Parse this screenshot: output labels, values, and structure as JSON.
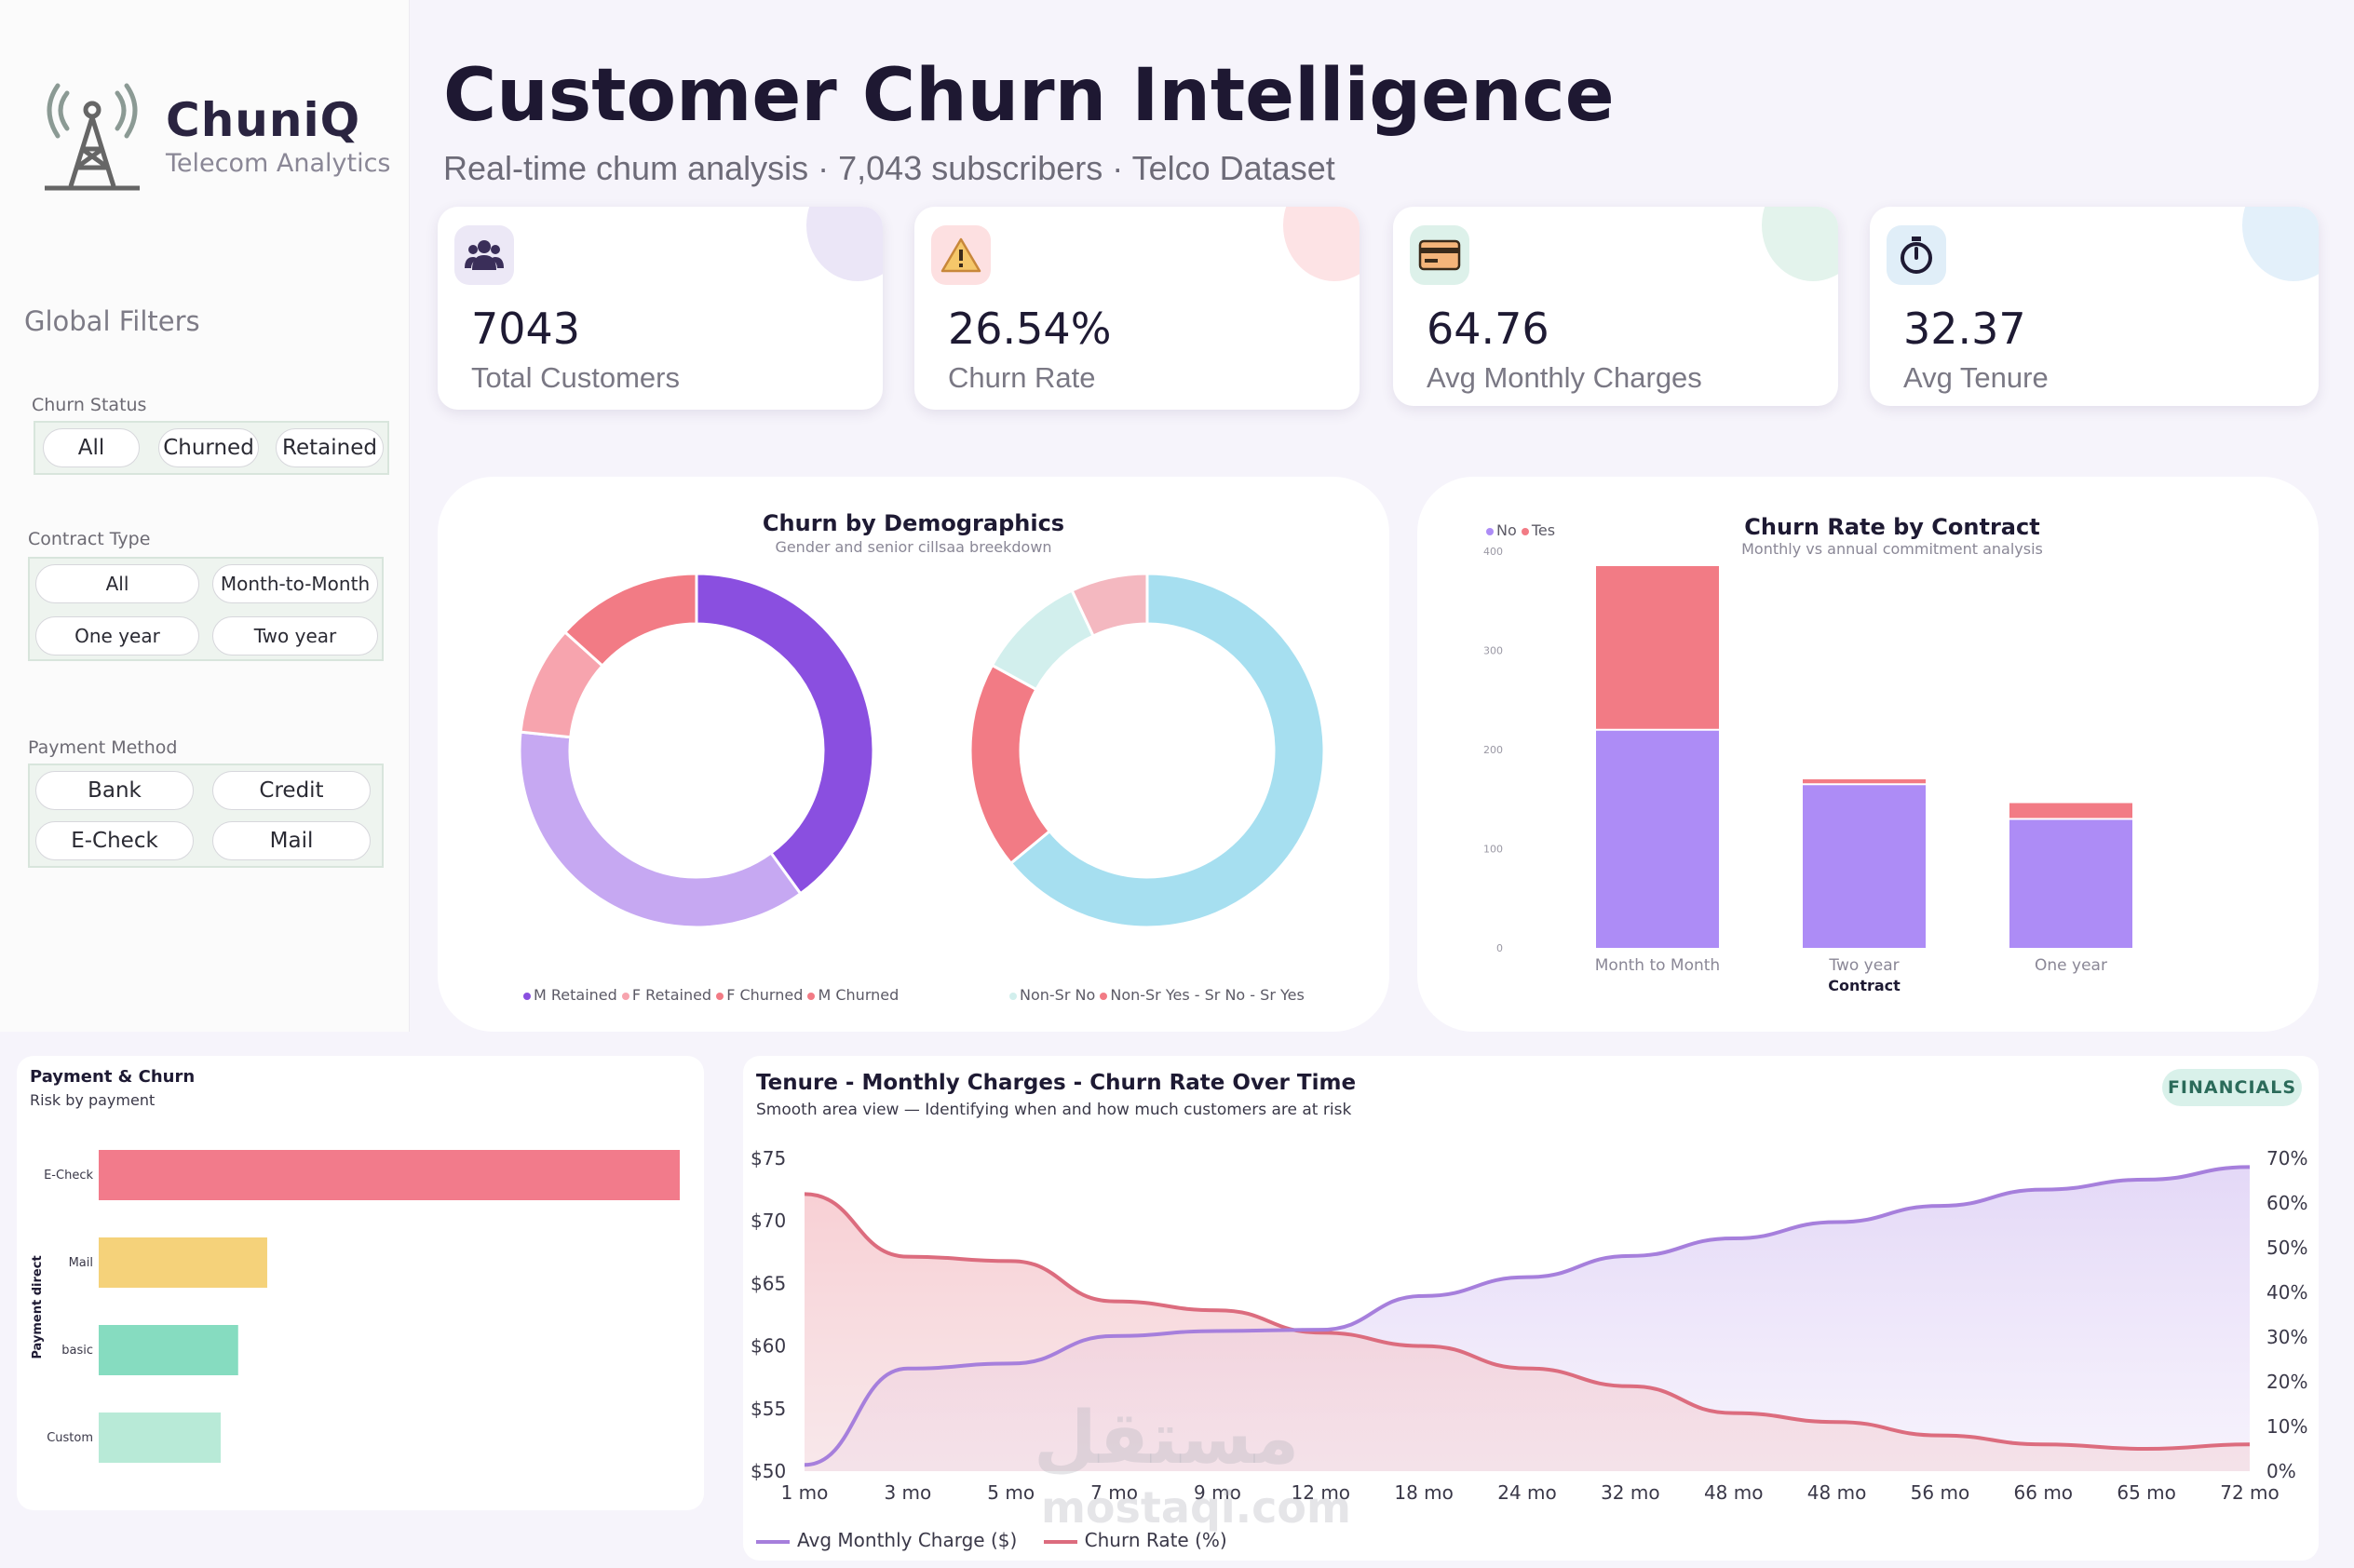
{
  "brand": {
    "name": "ChuniQ",
    "tagline": "Telecom Analytics"
  },
  "header": {
    "title": "Customer Churn Intelligence",
    "subtitle": "Real-time chum analysis · 7,043 subscribers · Telco Dataset"
  },
  "filters": {
    "title": "Global Filters",
    "churn_status": {
      "label": "Churn Status",
      "options": [
        "All",
        "Churned",
        "Retained"
      ]
    },
    "contract_type": {
      "label": "Contract Type",
      "options": [
        "All",
        "Month-to-Month",
        "One year",
        "Two year"
      ]
    },
    "payment_method": {
      "label": "Payment Method",
      "options": [
        "Bank",
        "Credit",
        "E-Check",
        "Mail"
      ]
    }
  },
  "kpis": [
    {
      "value": "7043",
      "label": "Total Customers",
      "icon": "users-icon",
      "accent": "#ebe6f7"
    },
    {
      "value": "26.54%",
      "label": "Churn Rate",
      "icon": "warning-icon",
      "accent": "#fde3e5"
    },
    {
      "value": "64.76",
      "label": "Avg Monthly Charges",
      "icon": "credit-card-icon",
      "accent": "#e3f3ec"
    },
    {
      "value": "32.37",
      "label": "Avg Tenure",
      "icon": "stopwatch-icon",
      "accent": "#e3f0fa"
    }
  ],
  "demographics": {
    "title": "Churn by Demographics",
    "subtitle": "Gender and senior cillsaa breekdown",
    "gender_legend": [
      "M Retained",
      "F Retained",
      "F Churned",
      "M Churned"
    ],
    "senior_legend": [
      "Non-Sr No",
      "Non-Sr Yes",
      "- Sr No",
      "- Sr Yes"
    ]
  },
  "contract": {
    "title": "Churn Rate by Contract",
    "subtitle": "Monthly vs annual commitment analysis",
    "legend": [
      "No",
      "Tes"
    ],
    "xlabel": "Contract"
  },
  "payment": {
    "title": "Payment & Churn",
    "subtitle": "Risk by payment",
    "ylabel": "Payment direct"
  },
  "trend": {
    "title": "Tenure - Monthly Charges - Churn Rate Over Time",
    "subtitle": "Smooth area view — Identifying when and how much customers are at risk",
    "badge": "FINANCIALS",
    "legend": [
      "Avg Monthly Charge ($)",
      "Churn Rate (%)"
    ]
  },
  "watermark": {
    "line1": "مستقل",
    "line2": "mostaqi.com"
  },
  "colors": {
    "purple": "#8a4fe0",
    "lavender": "#c6a8f2",
    "pink": "#f7a4ae",
    "coral": "#f27b85",
    "cyan": "#a6dff0",
    "mint": "#d2efed",
    "lightpink": "#f4b8c0",
    "bar_no": "#ad8cf6",
    "bar_yes": "#f27b85",
    "echeck": "#f27b8b",
    "mail": "#f5d27a",
    "basic": "#86dcc0",
    "custom": "#b8ead7",
    "line_purple": "#a67fdc",
    "line_red": "#dc6c7e"
  },
  "chart_data": [
    {
      "type": "pie",
      "title": "Churn by Demographics",
      "labels": [
        "M Retained",
        "F Retained",
        "F Churned",
        "M Churned"
      ],
      "values": [
        36,
        33,
        9,
        12
      ]
    },
    {
      "type": "pie",
      "labels": [
        "Non-Sr No",
        "Non-Sr Yes",
        "- Sr No",
        "- Sr Yes"
      ],
      "values": [
        64,
        19,
        10,
        7
      ]
    },
    {
      "type": "bar",
      "title": "Churn Rate by Contract",
      "xlabel": "Contract",
      "categories": [
        "Month to Month",
        "Two year",
        "One year"
      ],
      "series": [
        {
          "name": "No",
          "values": [
            220,
            165,
            130
          ]
        },
        {
          "name": "Tes",
          "values": [
            165,
            5,
            16
          ]
        }
      ],
      "yticks": [
        0,
        100,
        200,
        300,
        400
      ],
      "ylim": [
        0,
        400
      ]
    },
    {
      "type": "bar",
      "title": "Payment & Churn",
      "ylabel": "Payment direct",
      "categories": [
        "E-Check",
        "Mail",
        "basic",
        "Custom"
      ],
      "values": [
        100,
        29,
        24,
        21
      ]
    },
    {
      "type": "area",
      "title": "Tenure - Monthly Charges - Churn Rate Over Time",
      "x": [
        "1 mo",
        "3 mo",
        "5 mo",
        "7 mo",
        "9 mo",
        "12 mo",
        "18 mo",
        "24 mo",
        "32 mo",
        "48 mo",
        "48 mo",
        "56 mo",
        "66 mo",
        "65 mo",
        "72 mo"
      ],
      "y_left_ticks": [
        "$50",
        "$55",
        "$60",
        "$65",
        "$70",
        "$75"
      ],
      "y_right_ticks": [
        "0%",
        "10%",
        "20%",
        "30%",
        "40%",
        "50%",
        "60%",
        "70%"
      ],
      "ylim_left": [
        50,
        75
      ],
      "ylim_right": [
        0,
        70
      ],
      "series": [
        {
          "name": "Avg Monthly Charge ($)",
          "axis": "left",
          "values": [
            50.5,
            58.2,
            58.6,
            60.8,
            61.2,
            61.3,
            64.0,
            65.5,
            67.2,
            68.6,
            69.9,
            71.2,
            72.5,
            73.3,
            74.3
          ]
        },
        {
          "name": "Churn Rate (%)",
          "axis": "right",
          "values": [
            62,
            48,
            47,
            38,
            36,
            31,
            28,
            23,
            19,
            13,
            11,
            8,
            6,
            5,
            6
          ]
        }
      ]
    }
  ]
}
